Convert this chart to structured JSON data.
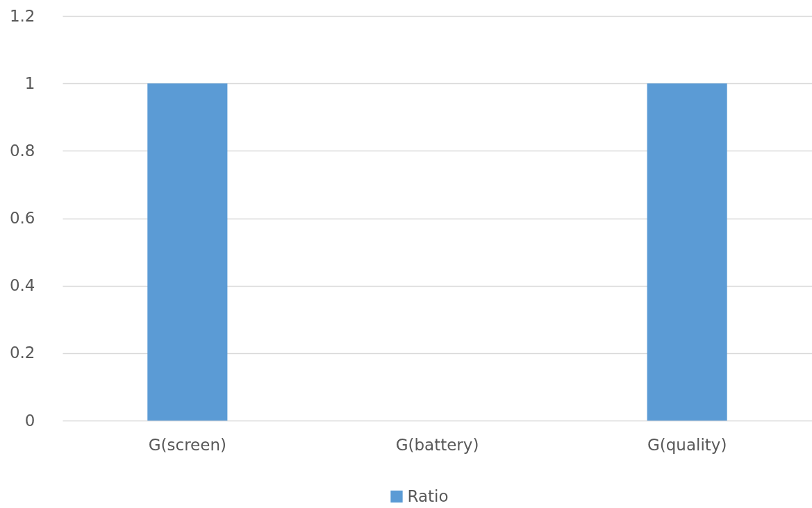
{
  "chart_data": {
    "type": "bar",
    "categories": [
      "G(screen)",
      "G(battery)",
      "G(quality)"
    ],
    "series": [
      {
        "name": "Ratio",
        "color": "#5b9bd5",
        "values": [
          1,
          0,
          1
        ]
      }
    ],
    "ylim": [
      0,
      1.2
    ],
    "yticks": [
      0,
      0.2,
      0.4,
      0.6,
      0.8,
      1,
      1.2
    ],
    "grid": "y",
    "legend": "bottom"
  }
}
